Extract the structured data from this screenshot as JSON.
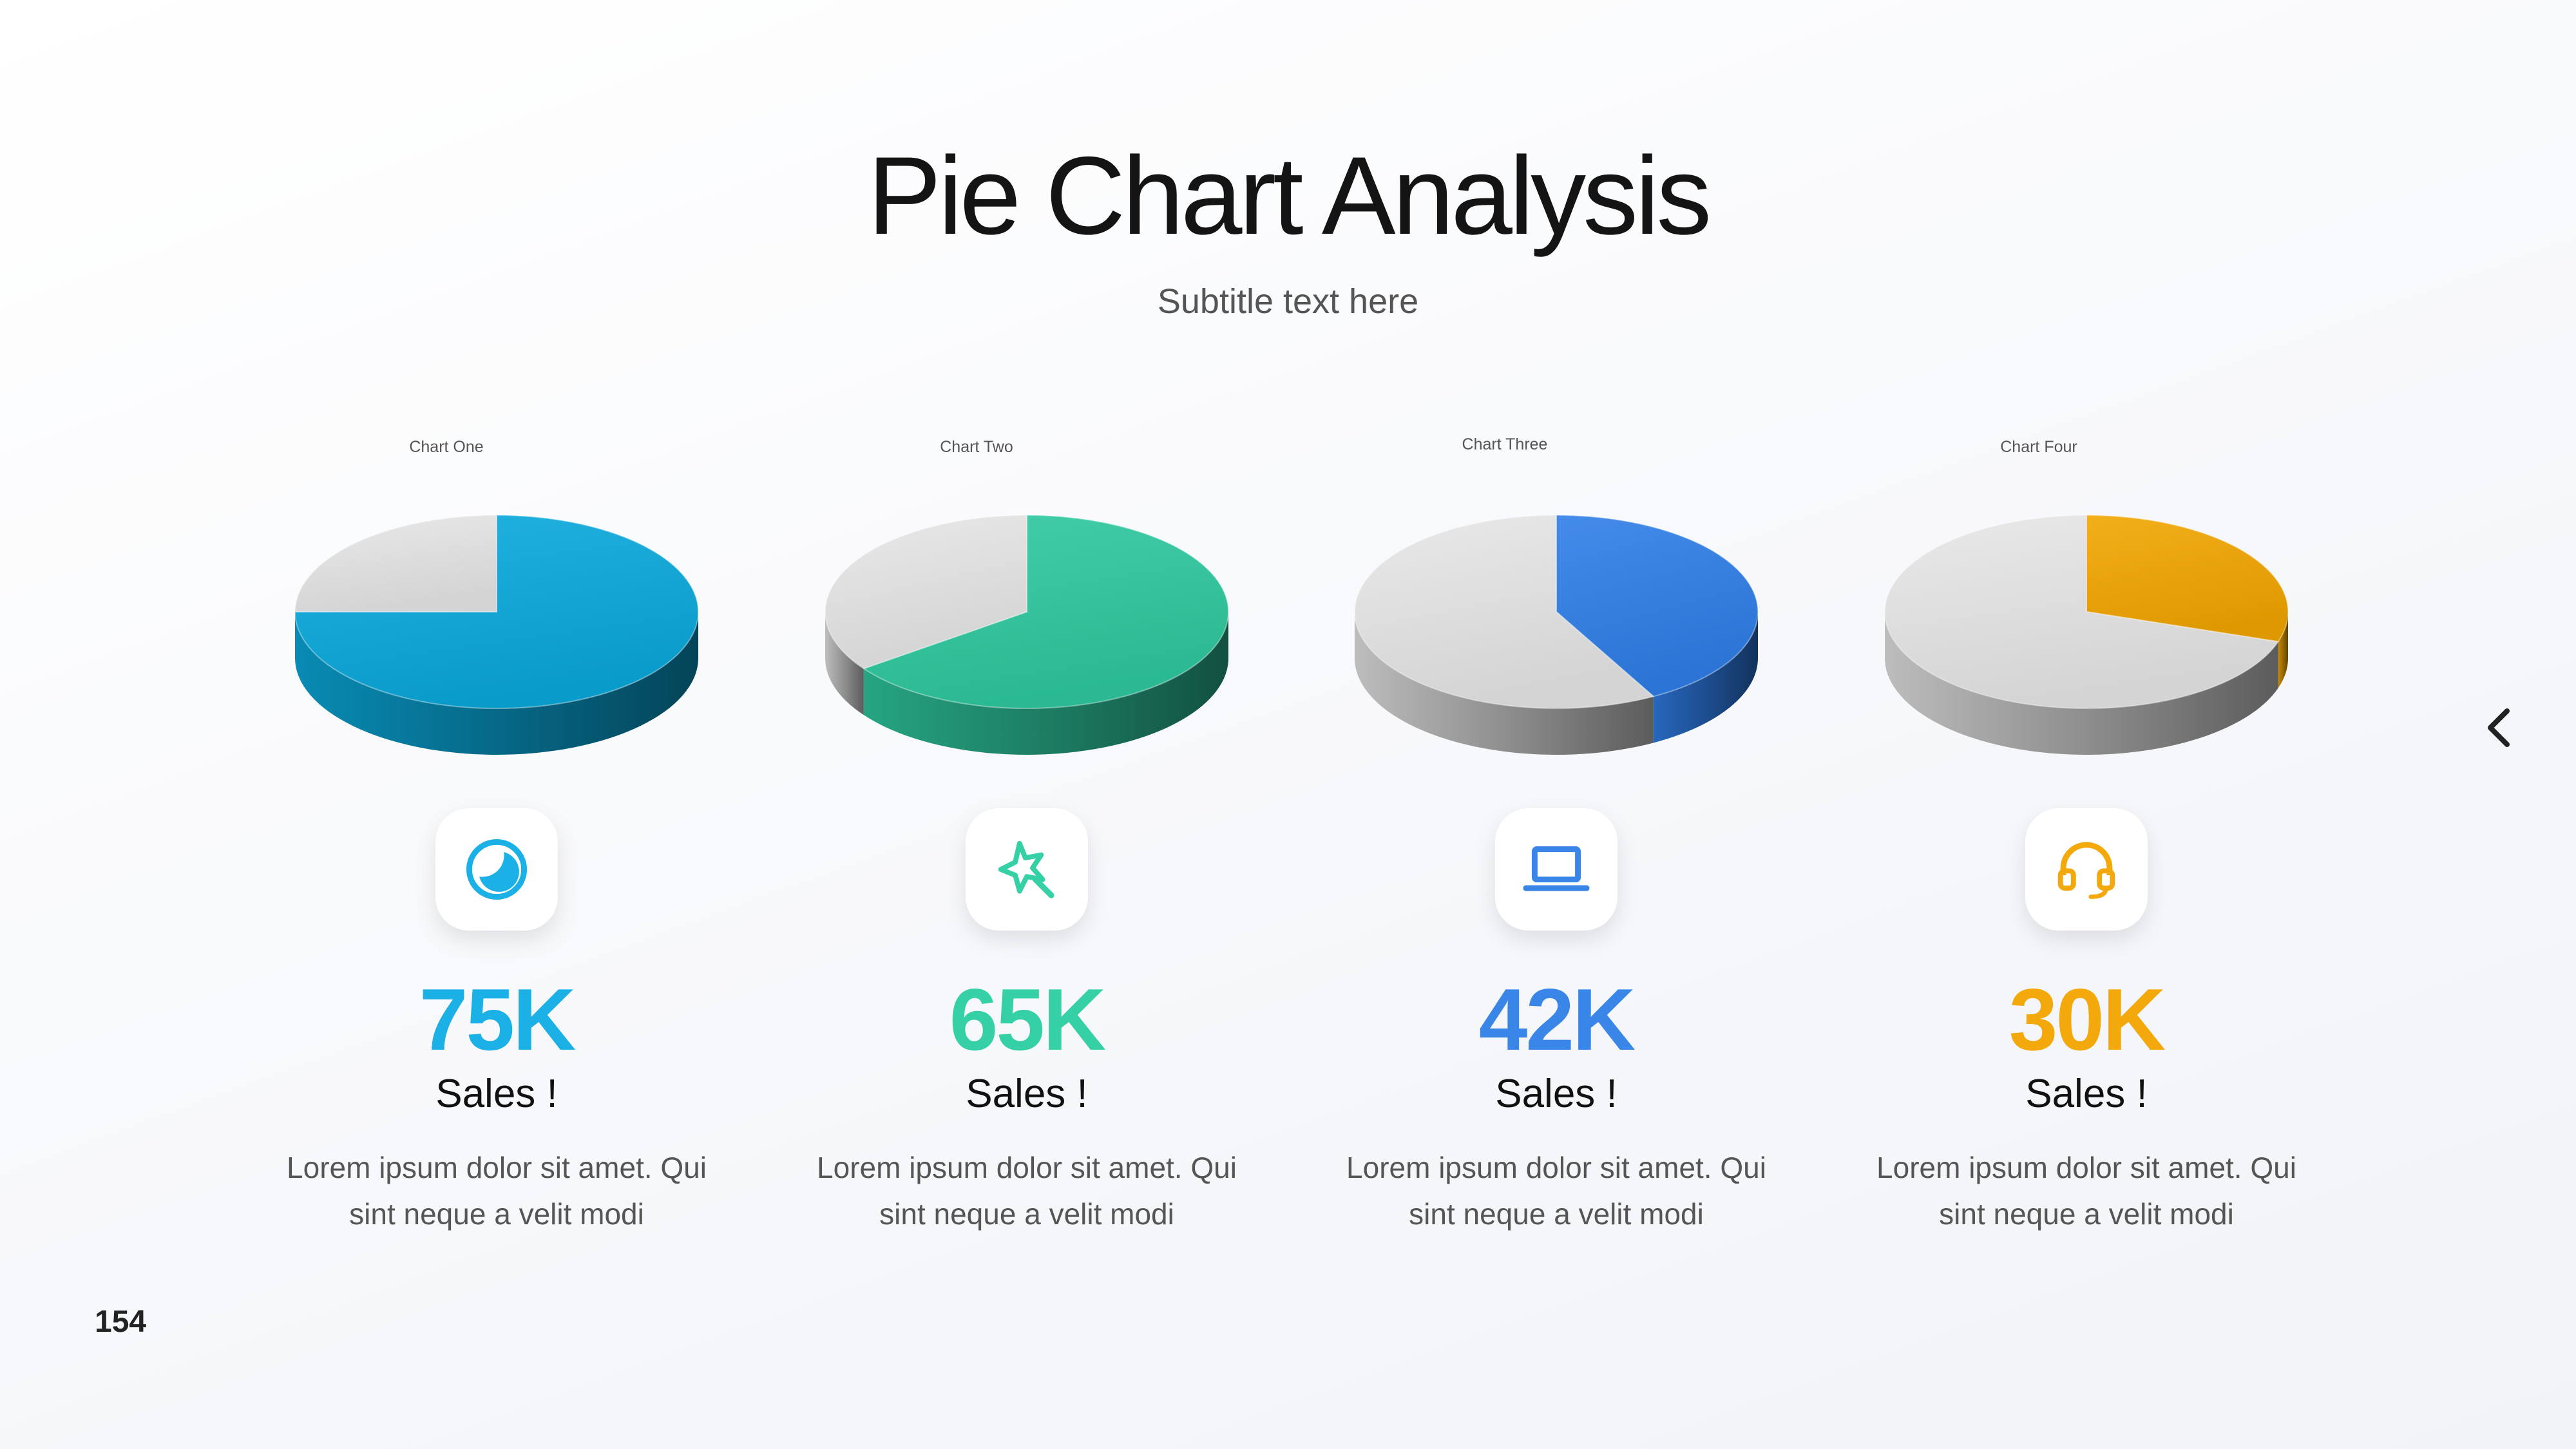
{
  "header": {
    "title": "Pie Chart Analysis",
    "subtitle": "Subtitle text here"
  },
  "page_number": "154",
  "nav": {
    "icon": "chevron-left-icon"
  },
  "chart_data": [
    {
      "type": "pie",
      "title": "Chart One",
      "slices": [
        {
          "value": 75,
          "color": "#0aa9dc"
        },
        {
          "value": 25,
          "color": "#e6e6e6"
        }
      ],
      "stat_value": "75K",
      "stat_label": "Sales !",
      "description_lines": [
        "Lorem ipsum dolor sit amet. Qui",
        "sint neque a velit modi"
      ],
      "icon": "moon-circle-icon",
      "accent": "#1bb0e6"
    },
    {
      "type": "pie",
      "title": "Chart Two",
      "slices": [
        {
          "value": 65,
          "color": "#2ec99f"
        },
        {
          "value": 35,
          "color": "#e6e6e6"
        }
      ],
      "stat_value": "65K",
      "stat_label": "Sales !",
      "description_lines": [
        "Lorem ipsum dolor sit amet. Qui",
        "sint neque a velit modi"
      ],
      "icon": "magic-wand-icon",
      "accent": "#36d0a6"
    },
    {
      "type": "pie",
      "title": "Chart Three",
      "slices": [
        {
          "value": 42,
          "color": "#2f7ee8"
        },
        {
          "value": 58,
          "color": "#e6e6e6"
        }
      ],
      "stat_value": "42K",
      "stat_label": "Sales !",
      "description_lines": [
        "Lorem ipsum dolor sit amet. Qui",
        "sint neque a velit modi"
      ],
      "icon": "laptop-icon",
      "accent": "#3a86e8"
    },
    {
      "type": "pie",
      "title": "Chart Four",
      "slices": [
        {
          "value": 30,
          "color": "#f2a600"
        },
        {
          "value": 70,
          "color": "#e6e6e6"
        }
      ],
      "stat_value": "30K",
      "stat_label": "Sales !",
      "description_lines": [
        "Lorem ipsum dolor sit amet. Qui",
        "sint neque a velit modi"
      ],
      "icon": "headset-icon",
      "accent": "#f3a90b"
    }
  ]
}
